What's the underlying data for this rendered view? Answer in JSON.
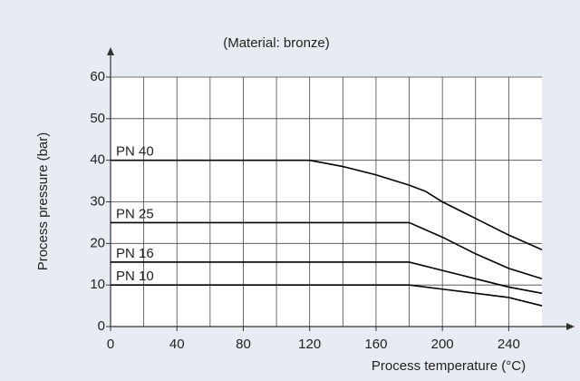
{
  "chart_data": {
    "type": "line",
    "title": "(Material: bronze)",
    "xlabel": "Process temperature (°C)",
    "ylabel": "Process pressure (bar)",
    "xlim": [
      0,
      260
    ],
    "ylim": [
      0,
      60
    ],
    "xticks": [
      0,
      40,
      80,
      120,
      160,
      200,
      240
    ],
    "xminorticks": [
      20,
      60,
      100,
      140,
      180,
      220
    ],
    "yticks": [
      0,
      10,
      20,
      30,
      40,
      50,
      60
    ],
    "grid": true,
    "series": [
      {
        "name": "PN 40",
        "color": "#000000",
        "x": [
          0,
          120,
          140,
          160,
          180,
          190,
          200,
          220,
          240,
          260
        ],
        "values": [
          40,
          40,
          38.5,
          36.5,
          34,
          32.5,
          30,
          26,
          22,
          18.5
        ]
      },
      {
        "name": "PN 25",
        "color": "#000000",
        "x": [
          0,
          180,
          200,
          220,
          240,
          260
        ],
        "values": [
          25,
          25,
          21.5,
          17.5,
          14,
          11.5
        ]
      },
      {
        "name": "PN 16",
        "color": "#000000",
        "x": [
          0,
          180,
          200,
          220,
          240,
          260
        ],
        "values": [
          15.5,
          15.5,
          13.5,
          11.5,
          9.5,
          8
        ]
      },
      {
        "name": "PN 10",
        "color": "#000000",
        "x": [
          0,
          180,
          200,
          220,
          240,
          260
        ],
        "values": [
          10,
          10,
          9,
          8,
          7,
          5
        ]
      }
    ]
  }
}
